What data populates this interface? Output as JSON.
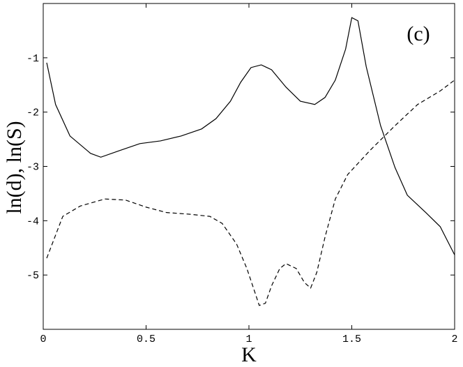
{
  "chart_data": {
    "type": "line",
    "xlabel": "K",
    "ylabel": "ln(d),  ln(S)",
    "annotation": "(c)",
    "xlim": [
      0,
      2
    ],
    "xticks": [
      0,
      0.5,
      1,
      1.5,
      2
    ],
    "ylim": [
      -6,
      0
    ],
    "yticks": [
      -5,
      -4,
      -3,
      -2,
      -1
    ],
    "grid": false,
    "series": [
      {
        "color": "#000000",
        "style": "solid",
        "x": [
          0.017,
          0.06,
          0.13,
          0.23,
          0.28,
          0.37,
          0.47,
          0.57,
          0.67,
          0.77,
          0.84,
          0.91,
          0.96,
          1.01,
          1.06,
          1.11,
          1.18,
          1.25,
          1.32,
          1.37,
          1.42,
          1.47,
          1.5,
          1.53,
          1.57,
          1.64,
          1.71,
          1.77,
          1.86,
          1.93,
          2.0
        ],
        "values": [
          -1.09,
          -1.86,
          -2.44,
          -2.76,
          -2.83,
          -2.71,
          -2.58,
          -2.53,
          -2.44,
          -2.31,
          -2.12,
          -1.8,
          -1.45,
          -1.18,
          -1.13,
          -1.22,
          -1.54,
          -1.8,
          -1.86,
          -1.73,
          -1.41,
          -0.84,
          -0.26,
          -0.32,
          -1.16,
          -2.25,
          -3.02,
          -3.53,
          -3.85,
          -4.11,
          -4.63
        ]
      },
      {
        "color": "#000000",
        "style": "dashed",
        "x": [
          0.017,
          0.095,
          0.18,
          0.3,
          0.4,
          0.5,
          0.6,
          0.71,
          0.81,
          0.87,
          0.94,
          0.99,
          1.03,
          1.05,
          1.08,
          1.11,
          1.15,
          1.18,
          1.23,
          1.27,
          1.3,
          1.33,
          1.37,
          1.42,
          1.48,
          1.59,
          1.71,
          1.82,
          1.93,
          2.0
        ],
        "values": [
          -4.69,
          -3.92,
          -3.73,
          -3.6,
          -3.62,
          -3.75,
          -3.85,
          -3.88,
          -3.92,
          -4.05,
          -4.43,
          -4.88,
          -5.33,
          -5.56,
          -5.52,
          -5.2,
          -4.88,
          -4.79,
          -4.88,
          -5.14,
          -5.24,
          -4.95,
          -4.3,
          -3.6,
          -3.15,
          -2.7,
          -2.25,
          -1.86,
          -1.61,
          -1.41
        ]
      }
    ]
  }
}
